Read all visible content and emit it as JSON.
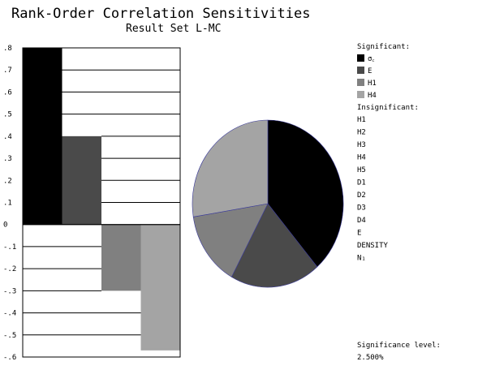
{
  "chart_data": [
    {
      "type": "bar",
      "title": "Rank-Order Correlation Sensitivities",
      "subtitle": "Result Set L-MC",
      "ylim": [
        -0.6,
        0.8
      ],
      "yticks": [
        ".8",
        ".7",
        ".6",
        ".5",
        ".4",
        ".3",
        ".2",
        ".1",
        "0",
        "-.1",
        "-.2",
        "-.3",
        "-.4",
        "-.5",
        "-.6"
      ],
      "ytick_values": [
        0.8,
        0.7,
        0.6,
        0.5,
        0.4,
        0.3,
        0.2,
        0.1,
        0,
        -0.1,
        -0.2,
        -0.3,
        -0.4,
        -0.5,
        -0.6
      ],
      "series": [
        {
          "name": "σ꜀",
          "values": [
            0.8
          ],
          "color": "#000000"
        },
        {
          "name": "E",
          "values": [
            0.4
          ],
          "color": "#4a4a4a"
        },
        {
          "name": "H1",
          "values": [
            -0.3
          ],
          "color": "#808080"
        },
        {
          "name": "H4",
          "values": [
            -0.57
          ],
          "color": "#a4a4a4"
        }
      ],
      "grid": true
    },
    {
      "type": "pie",
      "slices": [
        {
          "name": "σ꜀",
          "value": 0.8,
          "color": "#000000"
        },
        {
          "name": "E",
          "value": 0.4,
          "color": "#4a4a4a"
        },
        {
          "name": "H1",
          "value": 0.3,
          "color": "#808080"
        },
        {
          "name": "H4",
          "value": 0.57,
          "color": "#a4a4a4"
        }
      ]
    }
  ],
  "legend": {
    "significant_heading": "Significant:",
    "significant_items": [
      {
        "label": "σ꜀",
        "color": "#000000"
      },
      {
        "label": "E",
        "color": "#4a4a4a"
      },
      {
        "label": "H1",
        "color": "#808080"
      },
      {
        "label": "H4",
        "color": "#a4a4a4"
      }
    ],
    "insignificant_heading": "Insignificant:",
    "insignificant_items": [
      "H1",
      "H2",
      "H3",
      "H4",
      "H5",
      "D1",
      "D2",
      "D3",
      "D4",
      "E",
      "DENSITY",
      "N₁"
    ]
  },
  "significance": {
    "label": "Significance level:",
    "value": "2.500%"
  }
}
